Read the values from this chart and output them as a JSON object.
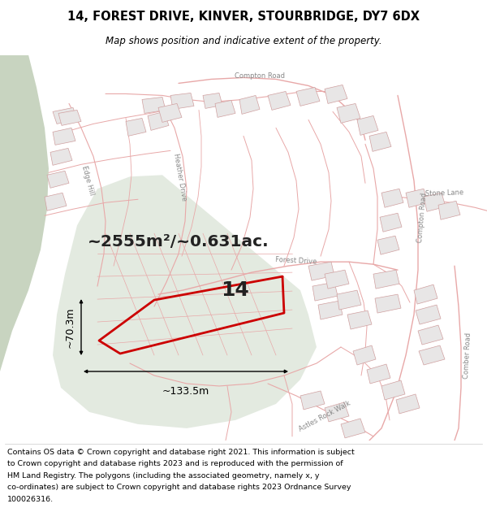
{
  "title": "14, FOREST DRIVE, KINVER, STOURBRIDGE, DY7 6DX",
  "subtitle": "Map shows position and indicative extent of the property.",
  "footer_lines": [
    "Contains OS data © Crown copyright and database right 2021. This information is subject",
    "to Crown copyright and database rights 2023 and is reproduced with the permission of",
    "HM Land Registry. The polygons (including the associated geometry, namely x, y",
    "co-ordinates) are subject to Crown copyright and database rights 2023 Ordnance Survey",
    "100026316."
  ],
  "area_text": "~2555m²/~0.631ac.",
  "number_label": "14",
  "width_label": "~133.5m",
  "height_label": "~70.3m",
  "title_fontsize": 10.5,
  "subtitle_fontsize": 8.5,
  "footer_fontsize": 6.8,
  "map_bg": "#f2f0f0",
  "road_color": "#e8a8a8",
  "road_lw": 0.8,
  "building_fill": "#e8e6e6",
  "building_edge": "#d0a0a0",
  "green_fill": "#c8d4c0",
  "property_green": "#cdd9c8",
  "property_red": "#cc0000",
  "label_color": "#888888",
  "water_fill": "#c8d4c0",
  "hatching_color": "#ddbaba"
}
